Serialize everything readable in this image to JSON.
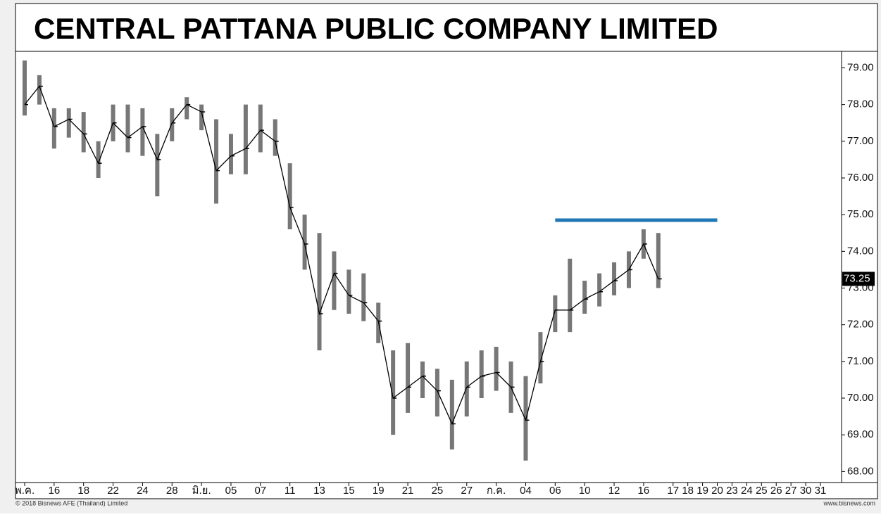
{
  "chart_data": {
    "type": "hlc",
    "title": "CENTRAL PATTANA PUBLIC COMPANY LIMITED",
    "categories": [
      "พ.ค.",
      null,
      "16",
      null,
      "18",
      null,
      "22",
      null,
      "24",
      null,
      "28",
      null,
      "มิ.ย.",
      null,
      "05",
      null,
      "07",
      null,
      "11",
      null,
      "13",
      null,
      "15",
      null,
      "19",
      null,
      "21",
      null,
      "25",
      null,
      "27",
      null,
      "ก.ค.",
      null,
      "04",
      null,
      "06",
      null,
      "10",
      null,
      "12",
      null,
      "16",
      null,
      "17",
      "18",
      "19",
      "20",
      "23",
      "24",
      "25",
      "26",
      "27",
      "30",
      "31"
    ],
    "high": [
      79.2,
      78.8,
      77.9,
      77.9,
      77.8,
      77.0,
      78.0,
      78.0,
      77.9,
      77.2,
      77.9,
      78.2,
      78.0,
      77.6,
      77.2,
      78.0,
      78.0,
      77.6,
      76.4,
      75.0,
      74.5,
      74.0,
      73.5,
      73.4,
      72.6,
      71.3,
      71.5,
      71.0,
      70.8,
      70.5,
      71.0,
      71.3,
      71.4,
      71.0,
      70.6,
      71.8,
      72.8,
      73.8,
      73.2,
      73.4,
      73.7,
      74.0,
      74.6,
      74.5,
      null,
      null,
      null,
      null,
      null,
      null,
      null,
      null,
      null,
      null,
      null
    ],
    "low": [
      77.7,
      78.0,
      76.8,
      77.1,
      76.7,
      76.0,
      77.0,
      76.7,
      76.6,
      75.5,
      77.0,
      77.6,
      77.3,
      75.3,
      76.1,
      76.1,
      76.7,
      76.6,
      74.6,
      73.5,
      71.3,
      72.4,
      72.3,
      72.1,
      71.5,
      69.0,
      69.6,
      70.0,
      69.5,
      68.6,
      69.5,
      70.0,
      70.2,
      69.6,
      68.3,
      70.4,
      71.8,
      71.8,
      72.3,
      72.5,
      72.8,
      73.0,
      73.8,
      73.0,
      null,
      null,
      null,
      null,
      null,
      null,
      null,
      null,
      null,
      null,
      null
    ],
    "close": [
      78.0,
      78.5,
      77.4,
      77.6,
      77.2,
      76.4,
      77.5,
      77.1,
      77.4,
      76.5,
      77.5,
      78.0,
      77.8,
      76.2,
      76.6,
      76.8,
      77.3,
      77.0,
      75.2,
      74.2,
      72.3,
      73.4,
      72.8,
      72.6,
      72.1,
      70.0,
      70.3,
      70.6,
      70.2,
      69.3,
      70.3,
      70.6,
      70.7,
      70.3,
      69.4,
      71.0,
      72.4,
      72.4,
      72.7,
      72.9,
      73.2,
      73.5,
      74.2,
      73.25,
      null,
      null,
      null,
      null,
      null,
      null,
      null,
      null,
      null,
      null,
      null
    ],
    "color": "#000000",
    "last_value": 73.25,
    "hline": {
      "value": 74.85,
      "x_range": [
        36,
        47
      ],
      "color": "#1f77b4"
    },
    "ylim": [
      67.7,
      79.45
    ],
    "yticks": [
      {
        "value": 68,
        "label": "68.00"
      },
      {
        "value": 69,
        "label": "69.00"
      },
      {
        "value": 70,
        "label": "70.00"
      },
      {
        "value": 71,
        "label": "71.00"
      },
      {
        "value": 72,
        "label": "72.00"
      },
      {
        "value": 73,
        "label": "73.00"
      },
      {
        "value": 74,
        "label": "74.00"
      },
      {
        "value": 75,
        "label": "75.00"
      },
      {
        "value": 76,
        "label": "76.00"
      },
      {
        "value": 77,
        "label": "77.00"
      },
      {
        "value": 78,
        "label": "78.00"
      },
      {
        "value": 79,
        "label": "79.00"
      }
    ],
    "copyright": "© 2018 Bisnews AFE (Thailand) Limited",
    "website": "www.bisnews.com"
  }
}
